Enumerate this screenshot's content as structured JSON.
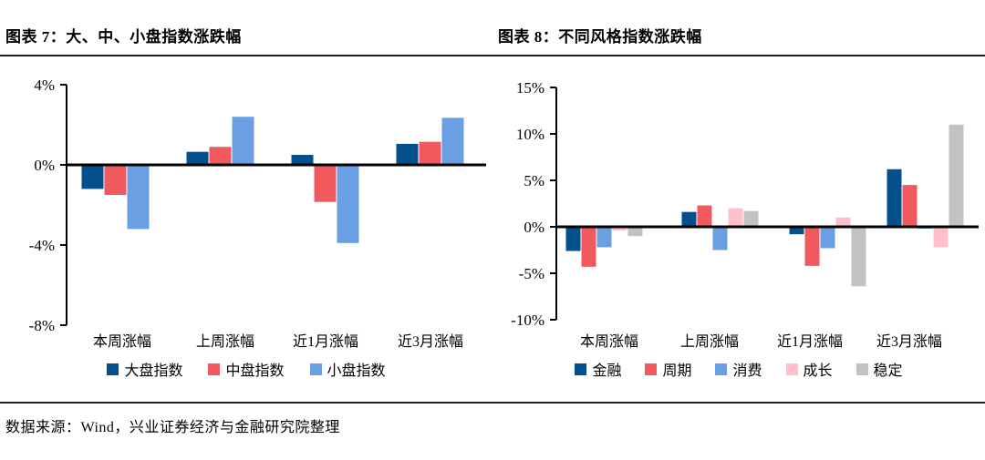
{
  "footer": {
    "source": "数据来源：Wind，兴业证券经济与金融研究院整理"
  },
  "chart_data": [
    {
      "type": "bar",
      "title": "图表 7：大、中、小盘指数涨跌幅",
      "categories": [
        "本周涨幅",
        "上周涨幅",
        "近1月涨幅",
        "近3月涨幅"
      ],
      "series": [
        {
          "name": "大盘指数",
          "color": "#04508C",
          "values": [
            -1.2,
            0.65,
            0.5,
            1.05
          ]
        },
        {
          "name": "中盘指数",
          "color": "#F05A5F",
          "values": [
            -1.5,
            0.9,
            -1.85,
            1.15
          ]
        },
        {
          "name": "小盘指数",
          "color": "#6B9FE3",
          "values": [
            -3.2,
            2.4,
            -3.9,
            2.35
          ]
        }
      ],
      "ylim": [
        -8,
        4
      ],
      "yticks": [
        4,
        0,
        -4,
        -8
      ],
      "ytick_labels": [
        "4%",
        "0%",
        "-4%",
        "-8%"
      ],
      "xlabel": "",
      "ylabel": "",
      "grid": false,
      "legend_position": "bottom"
    },
    {
      "type": "bar",
      "title": "图表 8：不同风格指数涨跌幅",
      "categories": [
        "本周涨幅",
        "上周涨幅",
        "近1月涨幅",
        "近3月涨幅"
      ],
      "series": [
        {
          "name": "金融",
          "color": "#04508C",
          "values": [
            -2.6,
            1.6,
            -0.8,
            6.2
          ]
        },
        {
          "name": "周期",
          "color": "#F05A5F",
          "values": [
            -4.3,
            2.3,
            -4.2,
            4.5
          ]
        },
        {
          "name": "消费",
          "color": "#6B9FE3",
          "values": [
            -2.2,
            -2.5,
            -2.3,
            -0.2
          ]
        },
        {
          "name": "成长",
          "color": "#FFC0CC",
          "values": [
            -0.4,
            2.0,
            1.0,
            -2.2
          ]
        },
        {
          "name": "稳定",
          "color": "#C2C2C2",
          "values": [
            -1.0,
            1.7,
            -6.4,
            11.0
          ]
        }
      ],
      "ylim": [
        -10,
        15
      ],
      "yticks": [
        15,
        10,
        5,
        0,
        -5,
        -10
      ],
      "ytick_labels": [
        "15%",
        "10%",
        "5%",
        "0%",
        "-5%",
        "-10%"
      ],
      "xlabel": "",
      "ylabel": "",
      "grid": false,
      "legend_position": "bottom"
    }
  ],
  "colors": {
    "axis": "#000000",
    "rule": "#1f1f1f",
    "dark_blue": "#04508C",
    "red": "#F05A5F",
    "light_blue": "#6B9FE3",
    "pink": "#FFC0CC",
    "gray": "#C2C2C2"
  }
}
